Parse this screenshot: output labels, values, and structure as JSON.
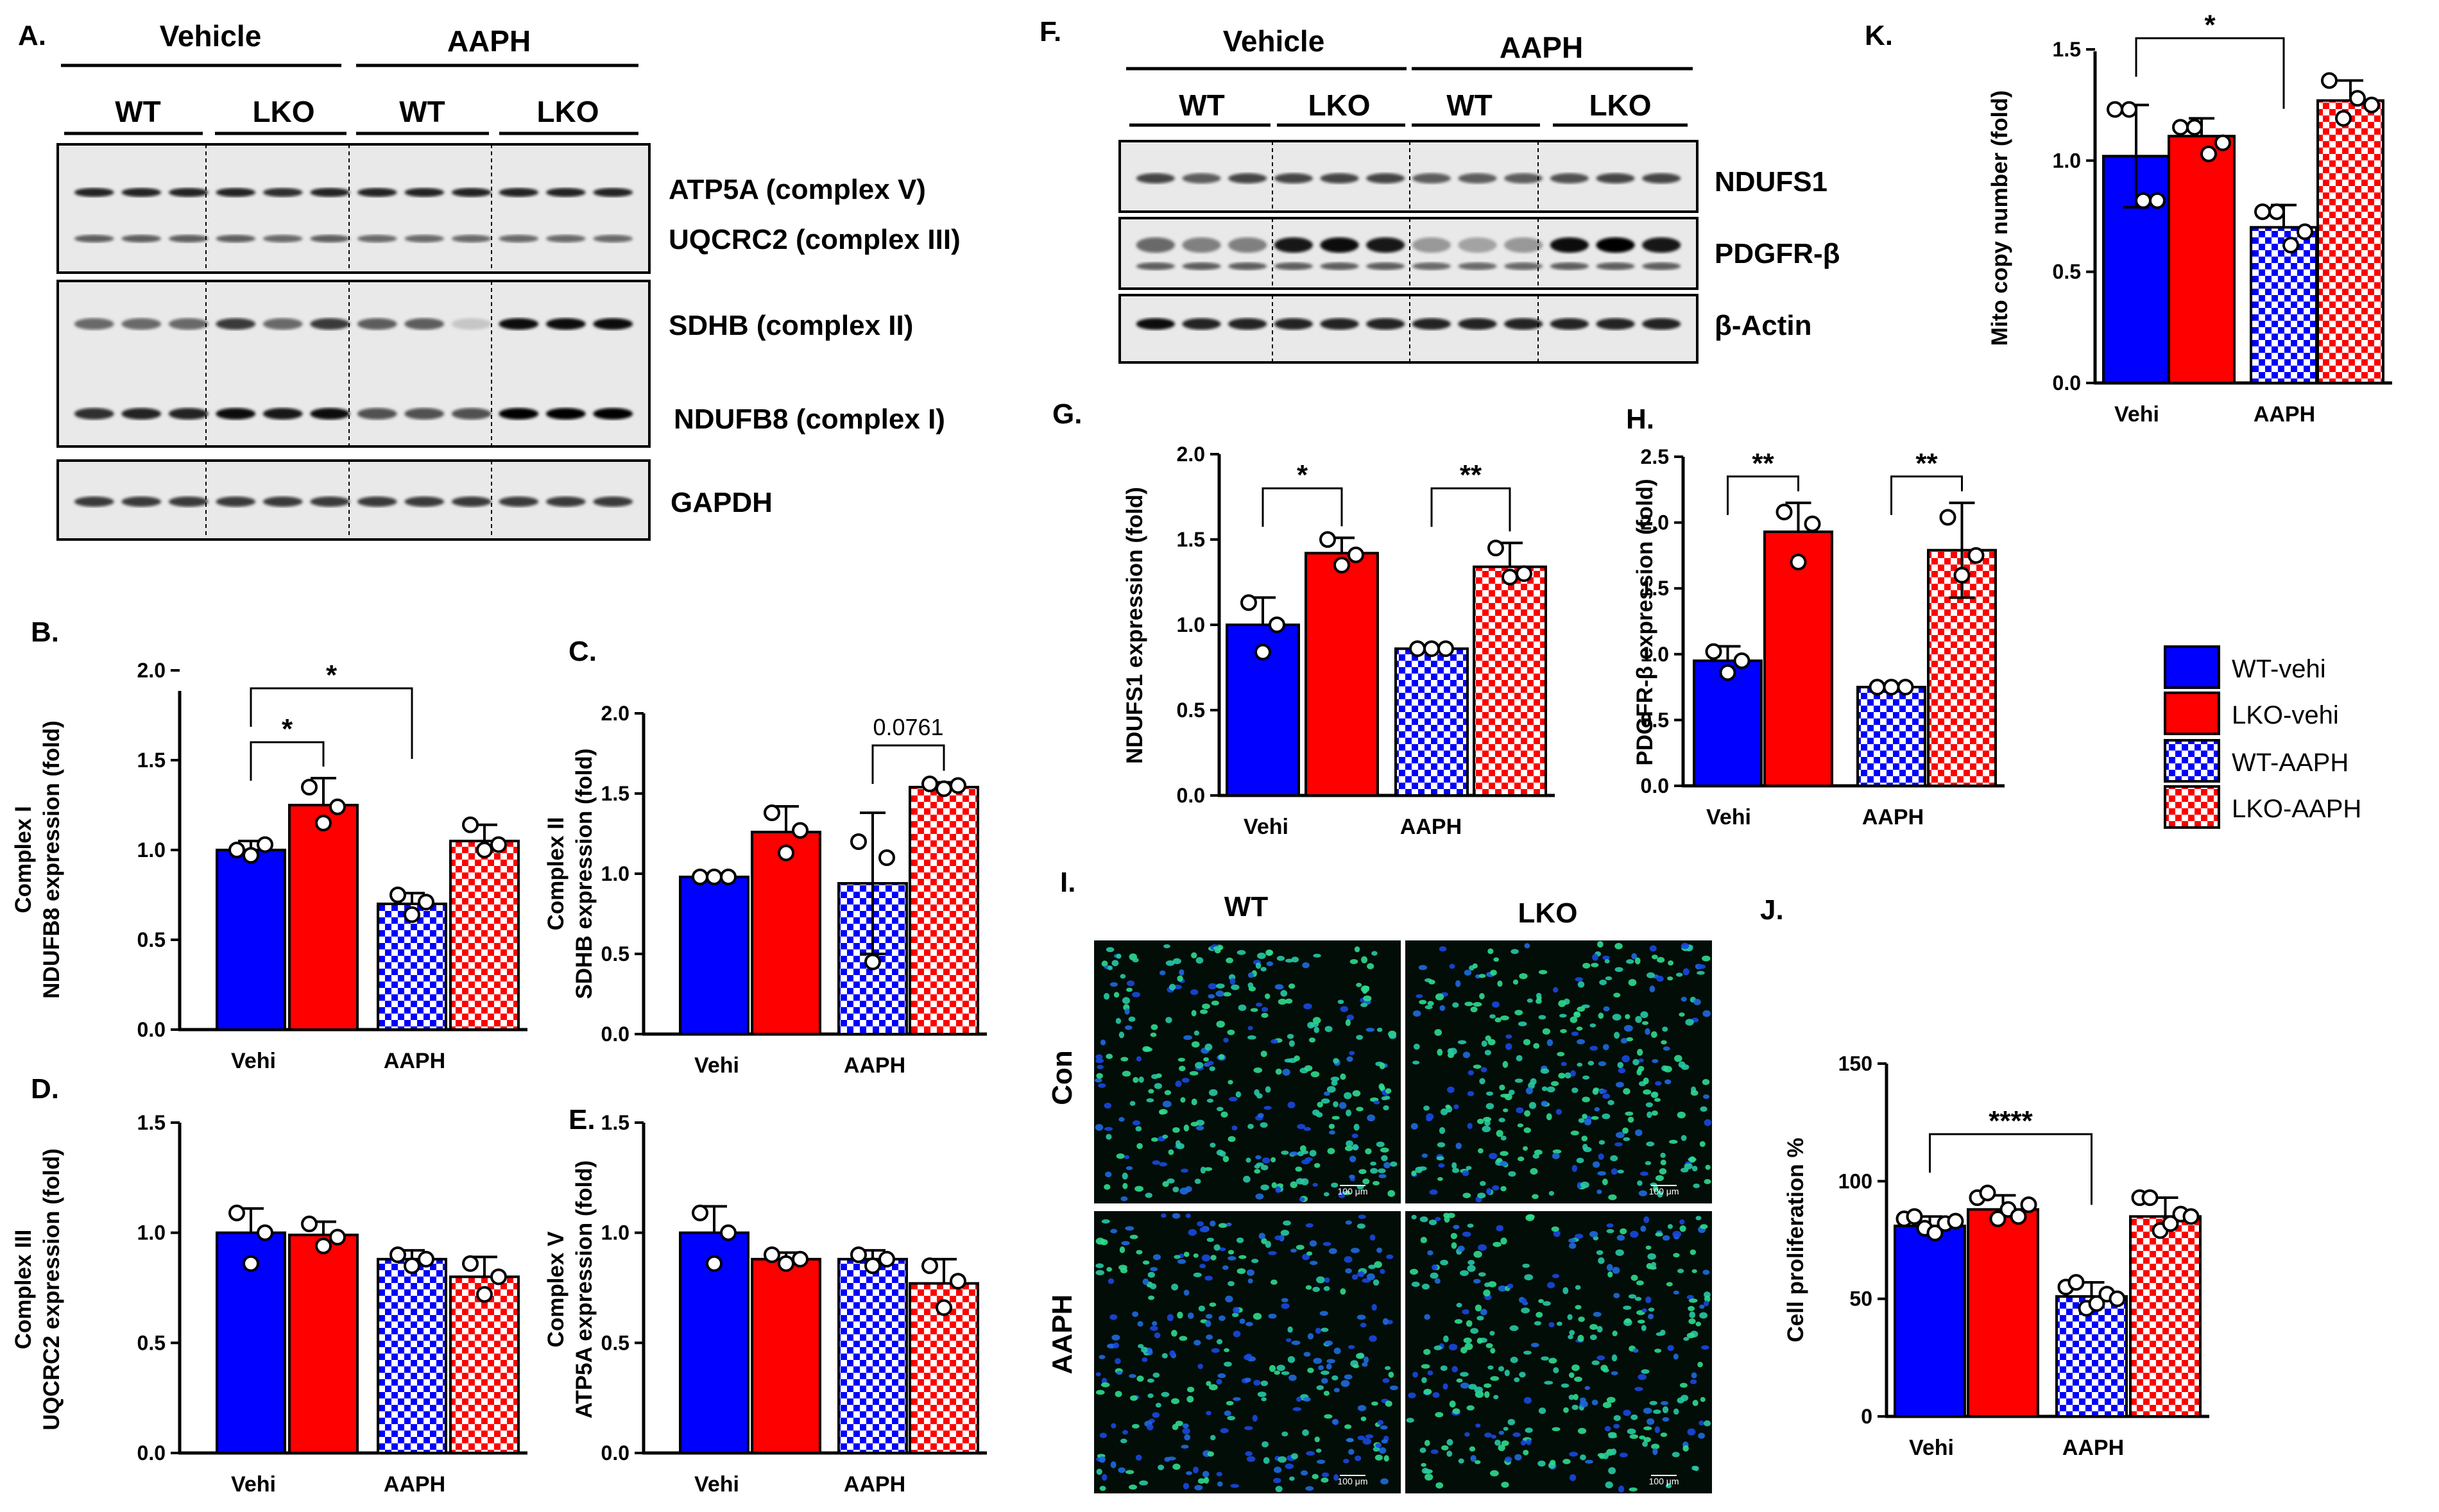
{
  "colors": {
    "wt": "#0000ff",
    "lko": "#ff0000",
    "axis": "#000000",
    "blot_bg": "#e8e8e8",
    "cell_bg": "#030d08"
  },
  "legend": {
    "items": [
      "WT-vehi",
      "LKO-vehi",
      "WT-AAPH",
      "LKO-AAPH"
    ]
  },
  "panel_a": {
    "letter": "A.",
    "treatments": [
      "Vehicle",
      "AAPH"
    ],
    "genotypes": [
      "WT",
      "LKO",
      "WT",
      "LKO"
    ],
    "bands": [
      "ATP5A (complex V)",
      "UQCRC2 (complex III)",
      "SDHB (complex II)",
      "NDUFB8 (complex I)",
      "GAPDH"
    ]
  },
  "panel_f": {
    "letter": "F.",
    "treatments": [
      "Vehicle",
      "AAPH"
    ],
    "genotypes": [
      "WT",
      "LKO",
      "WT",
      "LKO"
    ],
    "bands": [
      "NDUFS1",
      "PDGFR-β",
      "β-Actin"
    ]
  },
  "panel_i": {
    "letter": "I.",
    "columns": [
      "WT",
      "LKO"
    ],
    "rows": [
      "Con",
      "AAPH"
    ],
    "scale_bar": "100 μm"
  },
  "chart_data": [
    {
      "id": "B",
      "letter": "B.",
      "type": "bar",
      "ylabel": [
        "Complex I",
        "NDUFB8 expression (fold)"
      ],
      "ylim": [
        0,
        2.0
      ],
      "yticks": [
        "0.0",
        "0.5",
        "1.0",
        "1.5",
        "2.0"
      ],
      "categories": [
        "Vehi",
        "AAPH"
      ],
      "series": [
        {
          "name": "WT-vehi",
          "value": 1.0,
          "sd": 0.05,
          "points": [
            1.0,
            0.97,
            1.03
          ]
        },
        {
          "name": "LKO-vehi",
          "value": 1.25,
          "sd": 0.15,
          "points": [
            1.35,
            1.15,
            1.24
          ]
        },
        {
          "name": "WT-AAPH",
          "value": 0.7,
          "sd": 0.06,
          "points": [
            0.75,
            0.64,
            0.71
          ]
        },
        {
          "name": "LKO-AAPH",
          "value": 1.05,
          "sd": 0.09,
          "points": [
            1.14,
            1.0,
            1.03
          ]
        }
      ],
      "annotations": [
        {
          "label": "*",
          "from": 0,
          "to": 1,
          "y": 1.6
        },
        {
          "label": "*",
          "from": 0,
          "to": 2,
          "y": 1.9
        }
      ]
    },
    {
      "id": "C",
      "letter": "C.",
      "type": "bar",
      "ylabel": [
        "Complex II",
        "SDHB expression (fold)"
      ],
      "ylim": [
        0,
        2.0
      ],
      "yticks": [
        "0.0",
        "0.5",
        "1.0",
        "1.5",
        "2.0"
      ],
      "categories": [
        "Vehi",
        "AAPH"
      ],
      "series": [
        {
          "name": "WT-vehi",
          "value": 0.98,
          "sd": 0.01,
          "points": [
            0.98,
            0.98,
            0.98
          ]
        },
        {
          "name": "LKO-vehi",
          "value": 1.26,
          "sd": 0.16,
          "points": [
            1.38,
            1.13,
            1.27
          ]
        },
        {
          "name": "WT-AAPH",
          "value": 0.94,
          "sd": 0.44,
          "points": [
            1.2,
            0.45,
            1.1
          ]
        },
        {
          "name": "LKO-AAPH",
          "value": 1.54,
          "sd": 0.03,
          "points": [
            1.56,
            1.53,
            1.55
          ]
        }
      ],
      "annotations": [
        {
          "label": "0.0761",
          "from": 2,
          "to": 3,
          "y": 1.8
        }
      ]
    },
    {
      "id": "D",
      "letter": "D.",
      "type": "bar",
      "ylabel": [
        "Complex III",
        "UQCRC2 expression (fold)"
      ],
      "ylim": [
        0,
        1.5
      ],
      "yticks": [
        "0.0",
        "0.5",
        "1.0",
        "1.5"
      ],
      "categories": [
        "Vehi",
        "AAPH"
      ],
      "series": [
        {
          "name": "WT-vehi",
          "value": 1.0,
          "sd": 0.11,
          "points": [
            1.09,
            0.86,
            1.0
          ]
        },
        {
          "name": "LKO-vehi",
          "value": 0.99,
          "sd": 0.06,
          "points": [
            1.04,
            0.94,
            0.98
          ]
        },
        {
          "name": "WT-AAPH",
          "value": 0.88,
          "sd": 0.04,
          "points": [
            0.9,
            0.85,
            0.88
          ]
        },
        {
          "name": "LKO-AAPH",
          "value": 0.8,
          "sd": 0.09,
          "points": [
            0.86,
            0.72,
            0.8
          ]
        }
      ],
      "annotations": []
    },
    {
      "id": "E",
      "letter": "E.",
      "type": "bar",
      "ylabel": [
        "Complex V",
        "ATP5A expression (fold)"
      ],
      "ylim": [
        0,
        1.5
      ],
      "yticks": [
        "0.0",
        "0.5",
        "1.0",
        "1.5"
      ],
      "categories": [
        "Vehi",
        "AAPH"
      ],
      "series": [
        {
          "name": "WT-vehi",
          "value": 1.0,
          "sd": 0.12,
          "points": [
            1.09,
            0.86,
            1.0
          ]
        },
        {
          "name": "LKO-vehi",
          "value": 0.88,
          "sd": 0.03,
          "points": [
            0.9,
            0.86,
            0.88
          ]
        },
        {
          "name": "WT-AAPH",
          "value": 0.88,
          "sd": 0.04,
          "points": [
            0.9,
            0.85,
            0.88
          ]
        },
        {
          "name": "LKO-AAPH",
          "value": 0.77,
          "sd": 0.11,
          "points": [
            0.85,
            0.66,
            0.78
          ]
        }
      ],
      "annotations": []
    },
    {
      "id": "G",
      "letter": "G.",
      "type": "bar",
      "ylabel": [
        "NDUFS1 expression (fold)"
      ],
      "ylim": [
        0,
        2.0
      ],
      "yticks": [
        "0.0",
        "0.5",
        "1.0",
        "1.5",
        "2.0"
      ],
      "categories": [
        "Vehi",
        "AAPH"
      ],
      "series": [
        {
          "name": "WT-vehi",
          "value": 1.0,
          "sd": 0.16,
          "points": [
            1.13,
            0.84,
            1.0
          ]
        },
        {
          "name": "LKO-vehi",
          "value": 1.42,
          "sd": 0.09,
          "points": [
            1.5,
            1.35,
            1.41
          ]
        },
        {
          "name": "WT-AAPH",
          "value": 0.86,
          "sd": 0.01,
          "points": [
            0.86,
            0.86,
            0.86
          ]
        },
        {
          "name": "LKO-AAPH",
          "value": 1.34,
          "sd": 0.14,
          "points": [
            1.45,
            1.28,
            1.3
          ]
        }
      ],
      "annotations": [
        {
          "label": "*",
          "from": 0,
          "to": 1,
          "y": 1.8
        },
        {
          "label": "**",
          "from": 2,
          "to": 3,
          "y": 1.8
        }
      ]
    },
    {
      "id": "H",
      "letter": "H.",
      "type": "bar",
      "ylabel": [
        "PDGFR-β expression (fold)"
      ],
      "ylim": [
        0,
        2.5
      ],
      "yticks": [
        "0.0",
        "0.5",
        "1.0",
        "1.5",
        "2.0",
        "2.5"
      ],
      "categories": [
        "Vehi",
        "AAPH"
      ],
      "series": [
        {
          "name": "WT-vehi",
          "value": 0.95,
          "sd": 0.11,
          "points": [
            1.02,
            0.86,
            0.95
          ]
        },
        {
          "name": "LKO-vehi",
          "value": 1.93,
          "sd": 0.22,
          "points": [
            2.08,
            1.7,
            1.99
          ]
        },
        {
          "name": "WT-AAPH",
          "value": 0.75,
          "sd": 0.01,
          "points": [
            0.75,
            0.75,
            0.75
          ]
        },
        {
          "name": "LKO-AAPH",
          "value": 1.79,
          "sd": 0.36,
          "points": [
            2.04,
            1.6,
            1.75
          ]
        }
      ],
      "annotations": [
        {
          "label": "**",
          "from": 0,
          "to": 1,
          "y": 2.35
        },
        {
          "label": "**",
          "from": 2,
          "to": 3,
          "y": 2.35
        }
      ]
    },
    {
      "id": "K",
      "letter": "K.",
      "type": "bar",
      "ylabel": [
        "Mito copy number (fold)"
      ],
      "ylim": [
        0,
        1.5
      ],
      "yticks": [
        "0.0",
        "0.5",
        "1.0",
        "1.5"
      ],
      "categories": [
        "Vehi",
        "AAPH"
      ],
      "series": [
        {
          "name": "WT-vehi",
          "value": 1.02,
          "sd": 0.23,
          "points": [
            1.23,
            1.23,
            0.82,
            0.82
          ]
        },
        {
          "name": "LKO-vehi",
          "value": 1.11,
          "sd": 0.08,
          "points": [
            1.15,
            1.15,
            1.03,
            1.08
          ]
        },
        {
          "name": "WT-AAPH",
          "value": 0.7,
          "sd": 0.1,
          "points": [
            0.77,
            0.77,
            0.62,
            0.68
          ]
        },
        {
          "name": "LKO-AAPH",
          "value": 1.27,
          "sd": 0.09,
          "points": [
            1.36,
            1.19,
            1.28,
            1.25
          ]
        }
      ],
      "annotations": [
        {
          "label": "*",
          "from": 0,
          "to": 2,
          "y": 1.55
        }
      ]
    },
    {
      "id": "J",
      "letter": "J.",
      "type": "bar",
      "ylabel": [
        "Cell proliferation %"
      ],
      "ylim": [
        0,
        150
      ],
      "yticks": [
        "0",
        "50",
        "100",
        "150"
      ],
      "categories": [
        "Vehi",
        "AAPH"
      ],
      "series": [
        {
          "name": "WT-vehi",
          "value": 81,
          "sd": 4,
          "points": [
            84,
            85,
            80,
            78,
            82,
            83
          ]
        },
        {
          "name": "LKO-vehi",
          "value": 88,
          "sd": 6,
          "points": [
            93,
            95,
            84,
            88,
            85,
            90
          ]
        },
        {
          "name": "WT-AAPH",
          "value": 51,
          "sd": 6,
          "points": [
            55,
            57,
            46,
            48,
            52,
            50
          ]
        },
        {
          "name": "LKO-AAPH",
          "value": 85,
          "sd": 8,
          "points": [
            93,
            93,
            79,
            82,
            86,
            85
          ]
        }
      ],
      "annotations": [
        {
          "label": "****",
          "from": 0,
          "to": 2,
          "y": 120
        }
      ]
    }
  ]
}
